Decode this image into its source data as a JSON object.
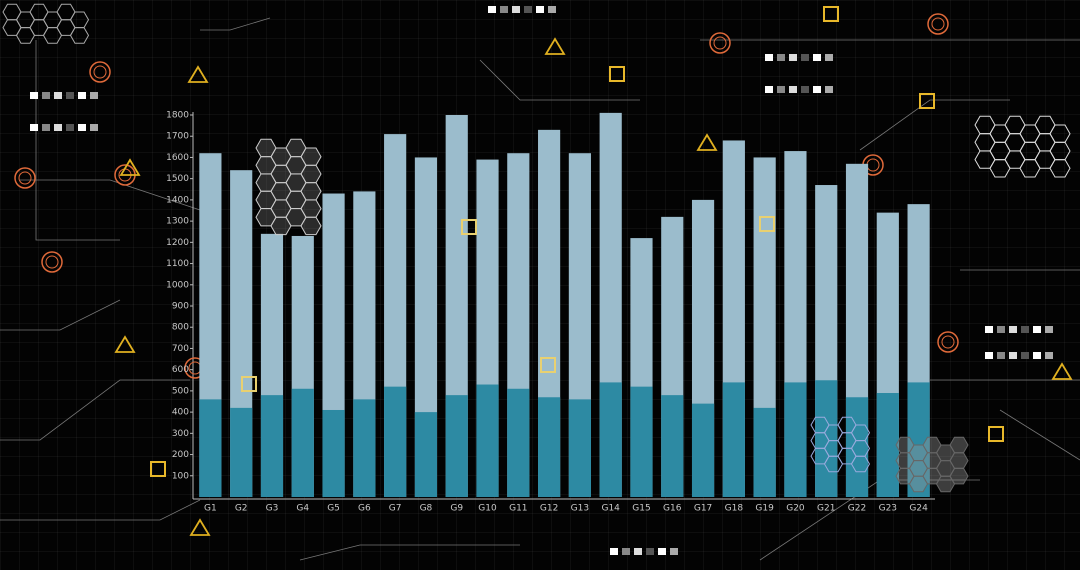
{
  "chart_data": {
    "type": "bar",
    "categories": [
      "G1",
      "G2",
      "G3",
      "G4",
      "G5",
      "G6",
      "G7",
      "G8",
      "G9",
      "G10",
      "G11",
      "G12",
      "G13",
      "G14",
      "G15",
      "G16",
      "G17",
      "G18",
      "G19",
      "G20",
      "G21",
      "G22",
      "G23",
      "G24"
    ],
    "series": [
      {
        "color": "#9bbccc",
        "values": [
          1620,
          1540,
          1240,
          1230,
          1430,
          1440,
          1710,
          1600,
          1800,
          1590,
          1620,
          1730,
          1620,
          1810,
          1220,
          1320,
          1400,
          1680,
          1600,
          1630,
          1470,
          1570,
          1340,
          1380
        ]
      },
      {
        "color": "#2d8aa3",
        "values": [
          460,
          420,
          480,
          510,
          410,
          460,
          520,
          400,
          480,
          530,
          510,
          470,
          460,
          540,
          520,
          480,
          440,
          540,
          420,
          540,
          550,
          470,
          490,
          540
        ]
      }
    ],
    "ylim": [
      0,
      1800
    ],
    "yticks": [
      100,
      200,
      300,
      400,
      500,
      600,
      700,
      800,
      900,
      1000,
      1100,
      1200,
      1300,
      1400,
      1500,
      1600,
      1700,
      1800
    ],
    "grid": false
  }
}
